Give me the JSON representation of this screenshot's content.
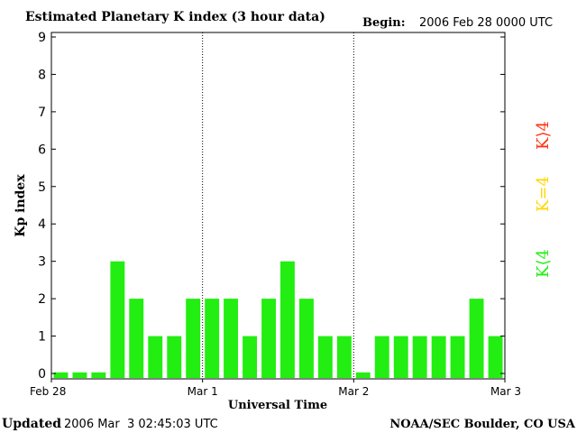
{
  "chart_data": {
    "type": "bar",
    "title": "Estimated Planetary K index (3 hour data)",
    "begin_label": "Begin:",
    "begin_value": "2006 Feb 28 0000 UTC",
    "ylabel": "Kp index",
    "xlabel": "Universal Time",
    "ylim": [
      0,
      9
    ],
    "y_ticks": [
      "0",
      "1",
      "2",
      "3",
      "4",
      "5",
      "6",
      "7",
      "8",
      "9"
    ],
    "x_ticks": [
      "Feb 28",
      "Mar 1",
      "Mar 2",
      "Mar 3"
    ],
    "day_dividers": [
      "Mar 1",
      "Mar 2"
    ],
    "values": [
      0.03,
      0.03,
      0.03,
      3,
      2,
      1,
      1,
      2,
      2,
      2,
      1,
      2,
      3,
      2,
      1,
      1,
      0.03,
      1,
      1,
      1,
      1,
      1,
      2,
      1
    ],
    "bar_color": "#22ee11",
    "grid": false,
    "legend": {
      "position": "right",
      "entries": [
        {
          "label": "K⟨4",
          "color": "#22ee11"
        },
        {
          "label": "K=4",
          "color": "#ffd700"
        },
        {
          "label": "K⟩4",
          "color": "#ff3311"
        }
      ]
    }
  },
  "footer": {
    "updated_label": "Updated",
    "updated_value": "2006 Mar  3 02:45:03 UTC",
    "credit": "NOAA/SEC Boulder, CO USA"
  }
}
